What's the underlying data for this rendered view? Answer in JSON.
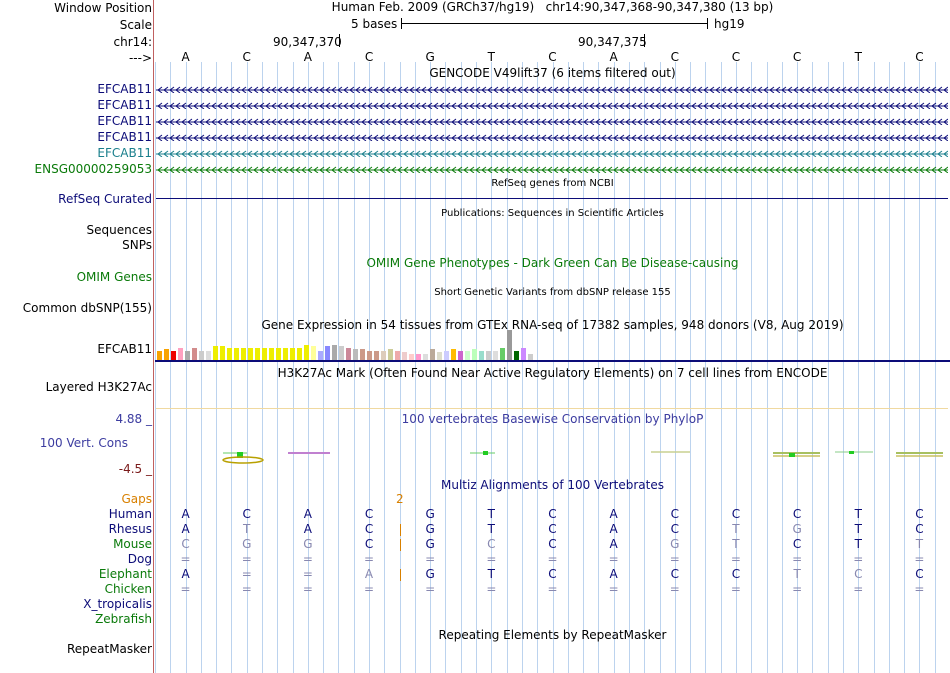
{
  "header": {
    "window_position_label": "Window Position",
    "scale_label": "Scale",
    "chrom_label": "chr14:",
    "strand_label": "--->",
    "position_title": "Human Feb. 2009 (GRCh37/hg19)   chr14:90,347,368-90,347,380 (13 bp)",
    "scale_text": "5 bases",
    "assembly": "hg19",
    "coord1": "90,347,370",
    "coord2": "90,347,375"
  },
  "sequence": [
    "A",
    "C",
    "A",
    "C",
    "G",
    "T",
    "C",
    "A",
    "C",
    "C",
    "C",
    "T",
    "C"
  ],
  "gencode": {
    "title": "GENCODE V49lift37 (6 items filtered out)",
    "genes": [
      {
        "label": "EFCAB11",
        "color": "#0c0c78"
      },
      {
        "label": "EFCAB11",
        "color": "#0c0c78"
      },
      {
        "label": "EFCAB11",
        "color": "#0c0c78"
      },
      {
        "label": "EFCAB11",
        "color": "#0c0c78"
      },
      {
        "label": "EFCAB11",
        "color": "#1a7f8c"
      },
      {
        "label": "ENSG00000259053",
        "color": "#0a7a0a"
      }
    ]
  },
  "refseq": {
    "title": "RefSeq genes from NCBI",
    "label": "RefSeq Curated"
  },
  "publications": {
    "title": "Publications: Sequences in Scientific Articles",
    "label1": "Sequences",
    "label2": "SNPs"
  },
  "omim": {
    "title": "OMIM Gene Phenotypes - Dark Green Can Be Disease-causing",
    "label": "OMIM Genes"
  },
  "dbsnp": {
    "title": "Short Genetic Variants from dbSNP release 155",
    "label": "Common dbSNP(155)"
  },
  "gtex": {
    "title": "Gene Expression in 54 tissues from GTEx RNA-seq of 17382 samples, 948 donors (V8, Aug 2019)",
    "label": "EFCAB11",
    "values": [
      0.3,
      0.35,
      0.3,
      0.4,
      0.3,
      0.4,
      0.3,
      0.3,
      0.45,
      0.45,
      0.4,
      0.4,
      0.4,
      0.4,
      0.4,
      0.4,
      0.4,
      0.4,
      0.4,
      0.4,
      0.4,
      0.5,
      0.45,
      0.3,
      0.45,
      0.5,
      0.45,
      0.4,
      0.35,
      0.35,
      0.3,
      0.3,
      0.3,
      0.35,
      0.3,
      0.25,
      0.2,
      0.2,
      0.2,
      0.35,
      0.25,
      0.3,
      0.35,
      0.3,
      0.3,
      0.35,
      0.3,
      0.3,
      0.3,
      0.4,
      1.0,
      0.3,
      0.4,
      0.2
    ],
    "colors": [
      "#f8a300",
      "#f8a300",
      "#e00",
      "#ffa0c0",
      "#aaa",
      "#d28c8c",
      "#ccc",
      "#ddd",
      "#ee0",
      "#ee0",
      "#ee0",
      "#ee0",
      "#ee0",
      "#ee0",
      "#ee0",
      "#ee0",
      "#ee0",
      "#ee0",
      "#ee0",
      "#ee0",
      "#ee0",
      "#ee0",
      "#ff9",
      "#aaf",
      "#88f",
      "#aaa",
      "#ccc",
      "#c89",
      "#bbb",
      "#c98",
      "#c98",
      "#c98",
      "#dcb",
      "#cc9",
      "#eaa",
      "#ecc",
      "#fcc",
      "#f9c",
      "#ddd",
      "#ba9",
      "#ddc",
      "#ccf",
      "#fb0",
      "#c6c",
      "#cfc",
      "#bfb",
      "#9dc",
      "#ccc",
      "#ddd",
      "#6c6",
      "#999",
      "#060",
      "#c8f",
      "#ccc"
    ]
  },
  "h3k27ac": {
    "title": "H3K27Ac Mark (Often Found Near Active Regulatory Elements) on 7 cell lines from ENCODE",
    "label": "Layered H3K27Ac"
  },
  "conservation": {
    "title": "100 vertebrates Basewise Conservation by PhyloP",
    "label": "100 Vert. Cons",
    "max": "4.88 _",
    "min": "-4.5 _"
  },
  "multiz": {
    "title": "Multiz Alignments of 100 Vertebrates",
    "gaps_label": "Gaps",
    "gap_count": "2",
    "species": [
      {
        "name": "Human",
        "color": "#0c0c78",
        "seq": [
          "A",
          "C",
          "A",
          "C",
          "G",
          "T",
          "C",
          "A",
          "C",
          "C",
          "C",
          "T",
          "C"
        ],
        "dim": []
      },
      {
        "name": "Rhesus",
        "color": "#0c0c78",
        "seq": [
          "A",
          "T",
          "A",
          "C",
          "G",
          "T",
          "C",
          "A",
          "C",
          "T",
          "G",
          "T",
          "C"
        ],
        "dim": [
          1,
          9,
          10
        ]
      },
      {
        "name": "Mouse",
        "color": "#0a7a0a",
        "seq": [
          "C",
          "G",
          "G",
          "C",
          "G",
          "C",
          "C",
          "A",
          "G",
          "T",
          "C",
          "T",
          "T"
        ],
        "dim": [
          0,
          1,
          2,
          5,
          8,
          9,
          12
        ]
      },
      {
        "name": "Dog",
        "color": "#0c0c78",
        "seq": [
          "=",
          "=",
          "=",
          "=",
          "=",
          "=",
          "=",
          "=",
          "=",
          "=",
          "=",
          "=",
          "="
        ],
        "dim": []
      },
      {
        "name": "Elephant",
        "color": "#0a7a0a",
        "seq": [
          "A",
          "=",
          "=",
          "A",
          "G",
          "T",
          "C",
          "A",
          "C",
          "C",
          "T",
          "C",
          "C"
        ],
        "dim": [
          3,
          10,
          11
        ]
      },
      {
        "name": "Chicken",
        "color": "#0a7a0a",
        "seq": [
          "=",
          "=",
          "=",
          "=",
          "=",
          "=",
          "=",
          "=",
          "=",
          "=",
          "=",
          "=",
          "="
        ],
        "dim": []
      },
      {
        "name": "X_tropicalis",
        "color": "#0c0c78",
        "seq": [],
        "dim": []
      },
      {
        "name": "Zebrafish",
        "color": "#0a7a0a",
        "seq": [],
        "dim": []
      }
    ]
  },
  "repeatmasker": {
    "title": "Repeating Elements by RepeatMasker",
    "label": "RepeatMasker"
  },
  "colors": {
    "navy": "#0c0c78",
    "green": "#0a7a0a",
    "maroon": "#7a1a1a",
    "orange": "#d88000",
    "grid": "#bcd3ee"
  }
}
